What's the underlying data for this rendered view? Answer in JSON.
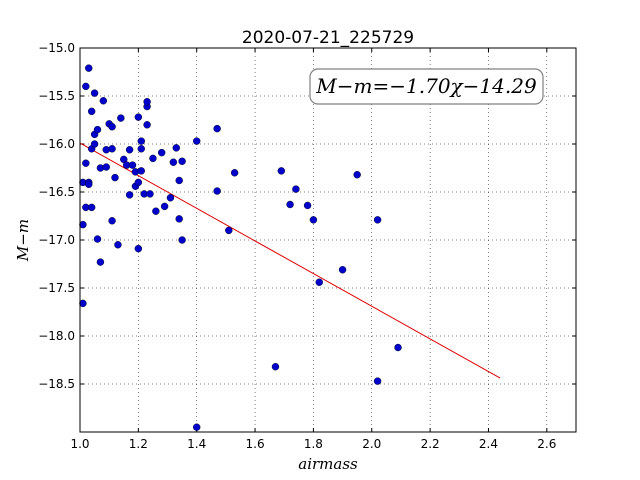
{
  "chart_data": {
    "type": "scatter",
    "title": "2020-07-21_225729",
    "xlabel": "airmass",
    "ylabel": "M−m",
    "annotation": "M−m=−1.70χ−14.29",
    "xlim": [
      1.0,
      2.7
    ],
    "ylim": [
      -15.0,
      -19.0
    ],
    "y_inverted": true,
    "grid": true,
    "grid_style": "dotted",
    "x_ticks": [
      "1.0",
      "1.2",
      "1.4",
      "1.6",
      "1.8",
      "2.0",
      "2.2",
      "2.4",
      "2.6"
    ],
    "y_ticks": [
      "−15.0",
      "−15.5",
      "−16.0",
      "−16.5",
      "−17.0",
      "−17.5",
      "−18.0",
      "−18.5"
    ],
    "x_tick_values": [
      1.0,
      1.2,
      1.4,
      1.6,
      1.8,
      2.0,
      2.2,
      2.4,
      2.6
    ],
    "y_tick_values": [
      -15.0,
      -15.5,
      -16.0,
      -16.5,
      -17.0,
      -17.5,
      -18.0,
      -18.5
    ],
    "fit": {
      "slope": -1.7,
      "intercept": -14.29,
      "x_range": [
        1.0,
        2.44
      ]
    },
    "colors": {
      "points": "#0000cc",
      "fit": "#dd0000"
    },
    "points": [
      [
        1.01,
        -17.66
      ],
      [
        1.01,
        -16.84
      ],
      [
        1.01,
        -16.4
      ],
      [
        1.02,
        -15.4
      ],
      [
        1.02,
        -16.2
      ],
      [
        1.02,
        -16.66
      ],
      [
        1.03,
        -15.21
      ],
      [
        1.03,
        -16.4
      ],
      [
        1.03,
        -16.42
      ],
      [
        1.04,
        -15.66
      ],
      [
        1.04,
        -16.05
      ],
      [
        1.04,
        -16.66
      ],
      [
        1.05,
        -15.47
      ],
      [
        1.05,
        -16.0
      ],
      [
        1.05,
        -15.9
      ],
      [
        1.06,
        -15.85
      ],
      [
        1.06,
        -16.99
      ],
      [
        1.07,
        -17.23
      ],
      [
        1.07,
        -16.25
      ],
      [
        1.08,
        -15.55
      ],
      [
        1.09,
        -16.06
      ],
      [
        1.1,
        -15.79
      ],
      [
        1.09,
        -16.24
      ],
      [
        1.11,
        -16.05
      ],
      [
        1.11,
        -15.82
      ],
      [
        1.11,
        -16.8
      ],
      [
        1.12,
        -16.35
      ],
      [
        1.13,
        -17.05
      ],
      [
        1.14,
        -15.73
      ],
      [
        1.15,
        -16.16
      ],
      [
        1.16,
        -16.22
      ],
      [
        1.17,
        -16.06
      ],
      [
        1.17,
        -16.53
      ],
      [
        1.18,
        -16.22
      ],
      [
        1.19,
        -16.29
      ],
      [
        1.19,
        -16.44
      ],
      [
        1.2,
        -17.09
      ],
      [
        1.2,
        -16.4
      ],
      [
        1.2,
        -15.72
      ],
      [
        1.21,
        -16.28
      ],
      [
        1.21,
        -16.05
      ],
      [
        1.21,
        -15.97
      ],
      [
        1.22,
        -16.52
      ],
      [
        1.23,
        -15.61
      ],
      [
        1.23,
        -15.56
      ],
      [
        1.23,
        -15.8
      ],
      [
        1.24,
        -16.52
      ],
      [
        1.25,
        -16.15
      ],
      [
        1.26,
        -16.7
      ],
      [
        1.28,
        -16.09
      ],
      [
        1.29,
        -16.65
      ],
      [
        1.31,
        -16.56
      ],
      [
        1.32,
        -16.19
      ],
      [
        1.33,
        -16.04
      ],
      [
        1.34,
        -16.38
      ],
      [
        1.34,
        -16.78
      ],
      [
        1.35,
        -16.18
      ],
      [
        1.35,
        -17.0
      ],
      [
        1.4,
        -15.97
      ],
      [
        1.4,
        -18.95
      ],
      [
        1.47,
        -15.84
      ],
      [
        1.47,
        -16.49
      ],
      [
        1.51,
        -16.9
      ],
      [
        1.53,
        -16.3
      ],
      [
        1.67,
        -18.32
      ],
      [
        1.69,
        -16.28
      ],
      [
        1.72,
        -16.63
      ],
      [
        1.74,
        -16.47
      ],
      [
        1.78,
        -16.64
      ],
      [
        1.8,
        -16.79
      ],
      [
        1.82,
        -17.44
      ],
      [
        1.9,
        -17.31
      ],
      [
        1.95,
        -16.32
      ],
      [
        2.02,
        -16.79
      ],
      [
        2.02,
        -18.47
      ],
      [
        2.09,
        -18.12
      ]
    ]
  }
}
